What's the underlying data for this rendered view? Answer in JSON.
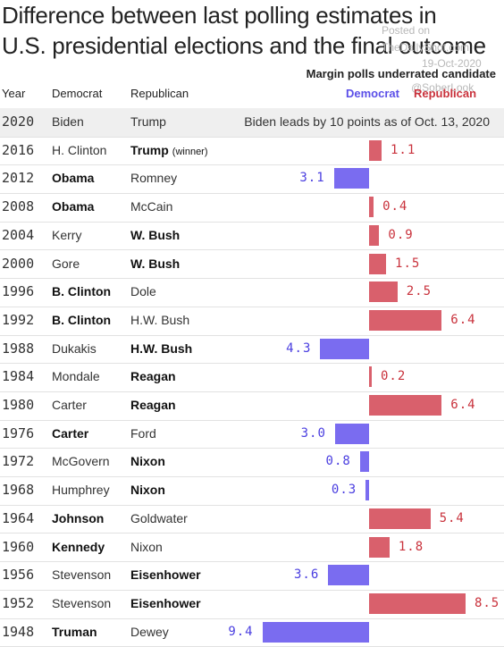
{
  "title_lines": [
    "Difference between last polling estimates in",
    "U.S. presidential elections and the final outcome"
  ],
  "watermark": {
    "line1": "Posted on",
    "line2": "TheDailyShot.com",
    "line3": "19-Oct-2020",
    "line4": "@SoberLook"
  },
  "legend": {
    "heading": "Margin polls underrated candidate",
    "dem_label": "Democrat",
    "rep_label": "Republican"
  },
  "headers": {
    "year": "Year",
    "dem": "Democrat",
    "rep": "Republican"
  },
  "winner_tag": "(winner)",
  "colors": {
    "democrat": "#7a6cf0",
    "republican": "#d9606c"
  },
  "chart_data": {
    "type": "bar",
    "title": "Difference between last polling estimates in U.S. presidential elections and the final outcome",
    "subtitle": "Margin polls underrated candidate",
    "axis_zero_note": "bars diverge left (Democrat underrated) and right (Republican underrated)",
    "rows": [
      {
        "year": "2020",
        "dem": "Biden",
        "rep": "Trump",
        "winner": null,
        "underrated": null,
        "value": null,
        "note": "Biden leads by 10 points as of Oct. 13, 2020",
        "label": null
      },
      {
        "year": "2016",
        "dem": "H. Clinton",
        "rep": "Trump",
        "winner": "rep",
        "underrated": "rep",
        "value": 1.1,
        "note": null,
        "label": "1.1",
        "rep_tag": true
      },
      {
        "year": "2012",
        "dem": "Obama",
        "rep": "Romney",
        "winner": "dem",
        "underrated": "dem",
        "value": 3.1,
        "note": null,
        "label": "3.1"
      },
      {
        "year": "2008",
        "dem": "Obama",
        "rep": "McCain",
        "winner": "dem",
        "underrated": "rep",
        "value": 0.4,
        "note": null,
        "label": "0.4"
      },
      {
        "year": "2004",
        "dem": "Kerry",
        "rep": "W. Bush",
        "winner": "rep",
        "underrated": "rep",
        "value": 0.9,
        "note": null,
        "label": "0.9"
      },
      {
        "year": "2000",
        "dem": "Gore",
        "rep": "W. Bush",
        "winner": "rep",
        "underrated": "rep",
        "value": 1.5,
        "note": null,
        "label": "1.5"
      },
      {
        "year": "1996",
        "dem": "B. Clinton",
        "rep": "Dole",
        "winner": "dem",
        "underrated": "rep",
        "value": 2.5,
        "note": null,
        "label": "2.5"
      },
      {
        "year": "1992",
        "dem": "B. Clinton",
        "rep": "H.W. Bush",
        "winner": "dem",
        "underrated": "rep",
        "value": 6.4,
        "note": null,
        "label": "6.4"
      },
      {
        "year": "1988",
        "dem": "Dukakis",
        "rep": "H.W. Bush",
        "winner": "rep",
        "underrated": "dem",
        "value": 4.3,
        "note": null,
        "label": "4.3"
      },
      {
        "year": "1984",
        "dem": "Mondale",
        "rep": "Reagan",
        "winner": "rep",
        "underrated": "rep",
        "value": 0.2,
        "note": null,
        "label": "0.2"
      },
      {
        "year": "1980",
        "dem": "Carter",
        "rep": "Reagan",
        "winner": "rep",
        "underrated": "rep",
        "value": 6.4,
        "note": null,
        "label": "6.4"
      },
      {
        "year": "1976",
        "dem": "Carter",
        "rep": "Ford",
        "winner": "dem",
        "underrated": "dem",
        "value": 3.0,
        "note": null,
        "label": "3.0"
      },
      {
        "year": "1972",
        "dem": "McGovern",
        "rep": "Nixon",
        "winner": "rep",
        "underrated": "dem",
        "value": 0.8,
        "note": null,
        "label": "0.8"
      },
      {
        "year": "1968",
        "dem": "Humphrey",
        "rep": "Nixon",
        "winner": "rep",
        "underrated": "dem",
        "value": 0.3,
        "note": null,
        "label": "0.3"
      },
      {
        "year": "1964",
        "dem": "Johnson",
        "rep": "Goldwater",
        "winner": "dem",
        "underrated": "rep",
        "value": 5.4,
        "note": null,
        "label": "5.4"
      },
      {
        "year": "1960",
        "dem": "Kennedy",
        "rep": "Nixon",
        "winner": "dem",
        "underrated": "rep",
        "value": 1.8,
        "note": null,
        "label": "1.8"
      },
      {
        "year": "1956",
        "dem": "Stevenson",
        "rep": "Eisenhower",
        "winner": "rep",
        "underrated": "dem",
        "value": 3.6,
        "note": null,
        "label": "3.6"
      },
      {
        "year": "1952",
        "dem": "Stevenson",
        "rep": "Eisenhower",
        "winner": "rep",
        "underrated": "rep",
        "value": 8.5,
        "note": null,
        "label": "8.5"
      },
      {
        "year": "1948",
        "dem": "Truman",
        "rep": "Dewey",
        "winner": "dem",
        "underrated": "dem",
        "value": 9.4,
        "note": null,
        "label": "9.4"
      }
    ]
  }
}
